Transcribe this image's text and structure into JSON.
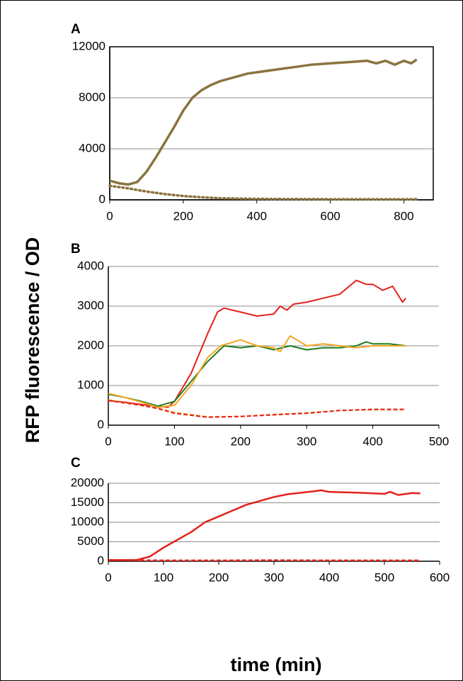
{
  "ylabel": "RFP fluorescence / OD",
  "xlabel": "time (min)",
  "chart_data": [
    {
      "type": "line",
      "label": "A",
      "xlim": [
        0,
        880
      ],
      "xticks": [
        0,
        200,
        400,
        600,
        800
      ],
      "ylim": [
        0,
        12000
      ],
      "yticks": [
        0,
        4000,
        8000,
        12000
      ],
      "grid": true,
      "frame": true,
      "series": [
        {
          "color": "#8b7340",
          "dash": "solid",
          "x": [
            0,
            25,
            50,
            75,
            100,
            125,
            150,
            175,
            200,
            225,
            250,
            275,
            300,
            325,
            350,
            375,
            400,
            450,
            500,
            550,
            600,
            650,
            700,
            725,
            750,
            775,
            800,
            820,
            835
          ],
          "values": [
            1500,
            1300,
            1200,
            1400,
            2200,
            3300,
            4500,
            5700,
            7000,
            8000,
            8600,
            9000,
            9300,
            9500,
            9700,
            9900,
            10000,
            10200,
            10400,
            10600,
            10700,
            10800,
            10900,
            10700,
            10900,
            10600,
            10900,
            10700,
            11000
          ]
        },
        {
          "color": "#8b7340",
          "dash": "dotted",
          "x": [
            0,
            50,
            100,
            150,
            200,
            250,
            300,
            400,
            500,
            600,
            700,
            835
          ],
          "values": [
            1100,
            900,
            650,
            450,
            300,
            200,
            130,
            80,
            60,
            50,
            50,
            50
          ]
        }
      ]
    },
    {
      "type": "line",
      "label": "B",
      "xlim": [
        0,
        500
      ],
      "xticks": [
        0,
        100,
        200,
        300,
        400,
        500
      ],
      "ylim": [
        0,
        4000
      ],
      "yticks": [
        0,
        1000,
        2000,
        3000,
        4000
      ],
      "grid": true,
      "frame": false,
      "series": [
        {
          "color": "#e3201b",
          "dash": "solid",
          "x": [
            0,
            25,
            50,
            75,
            90,
            100,
            125,
            150,
            165,
            175,
            200,
            225,
            250,
            260,
            270,
            280,
            300,
            325,
            350,
            375,
            390,
            400,
            415,
            430,
            445,
            450
          ],
          "values": [
            620,
            580,
            520,
            480,
            450,
            600,
            1300,
            2300,
            2850,
            2950,
            2850,
            2750,
            2800,
            3000,
            2900,
            3050,
            3100,
            3200,
            3300,
            3650,
            3550,
            3550,
            3400,
            3500,
            3100,
            3200
          ]
        },
        {
          "color": "#1e7d1e",
          "dash": "solid",
          "x": [
            0,
            25,
            50,
            75,
            100,
            125,
            150,
            175,
            200,
            225,
            250,
            275,
            300,
            325,
            350,
            375,
            390,
            400,
            425,
            450
          ],
          "values": [
            780,
            700,
            600,
            480,
            600,
            1100,
            1600,
            2000,
            1950,
            2000,
            1900,
            2000,
            1900,
            1950,
            1950,
            2000,
            2100,
            2050,
            2050,
            2000
          ]
        },
        {
          "color": "#f5a623",
          "dash": "solid",
          "x": [
            0,
            25,
            50,
            75,
            100,
            125,
            150,
            170,
            200,
            225,
            250,
            260,
            275,
            300,
            325,
            350,
            375,
            400,
            425,
            450
          ],
          "values": [
            800,
            700,
            580,
            450,
            500,
            1000,
            1700,
            2000,
            2150,
            2000,
            1950,
            1850,
            2250,
            2000,
            2050,
            2000,
            1950,
            2000,
            2000,
            2000
          ]
        },
        {
          "color": "#f5a623",
          "dash": "dashed",
          "x": [
            0,
            50,
            75,
            100,
            150,
            200,
            250,
            300,
            350,
            400,
            450
          ],
          "values": [
            640,
            500,
            430,
            320,
            210,
            220,
            270,
            310,
            370,
            390,
            390
          ]
        },
        {
          "color": "#e3201b",
          "dash": "dashed",
          "x": [
            0,
            50,
            75,
            100,
            150,
            200,
            250,
            300,
            350,
            400,
            450
          ],
          "values": [
            620,
            500,
            420,
            300,
            200,
            220,
            260,
            300,
            370,
            400,
            400
          ]
        }
      ]
    },
    {
      "type": "line",
      "label": "C",
      "xlim": [
        0,
        600
      ],
      "xticks": [
        0,
        100,
        200,
        300,
        400,
        500,
        600
      ],
      "ylim": [
        0,
        20000
      ],
      "yticks": [
        0,
        5000,
        10000,
        15000,
        20000
      ],
      "grid": true,
      "frame": false,
      "series": [
        {
          "color": "#e3201b",
          "dash": "solid",
          "x": [
            0,
            25,
            50,
            75,
            100,
            125,
            150,
            175,
            200,
            225,
            250,
            275,
            300,
            325,
            350,
            375,
            385,
            400,
            450,
            500,
            510,
            525,
            550,
            565
          ],
          "values": [
            300,
            300,
            300,
            1200,
            3500,
            5500,
            7500,
            10000,
            11500,
            13000,
            14500,
            15500,
            16500,
            17200,
            17600,
            18000,
            18200,
            17800,
            17600,
            17300,
            17800,
            17000,
            17500,
            17400
          ]
        },
        {
          "color": "#e3201b",
          "dash": "dashed",
          "x": [
            0,
            50,
            100,
            200,
            300,
            400,
            500,
            565
          ],
          "values": [
            300,
            250,
            200,
            200,
            250,
            200,
            200,
            200
          ]
        }
      ]
    }
  ]
}
